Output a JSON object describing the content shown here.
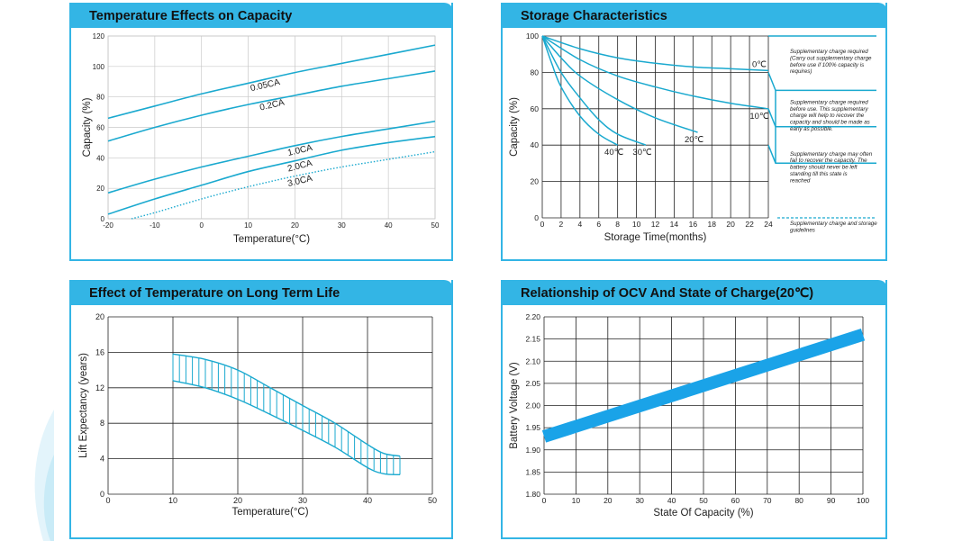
{
  "colors": {
    "accent": "#33b5e5",
    "curve": "#1aa9cf",
    "grid": "#222222"
  },
  "chart_data": [
    {
      "id": "capacity",
      "type": "line",
      "title": "Temperature Effects on Capacity",
      "xlabel": "Temperature(°C)",
      "ylabel": "Capacity (%)",
      "xlim": [
        -20,
        50
      ],
      "ylim": [
        0,
        120
      ],
      "xticks": [
        -20,
        -10,
        0,
        10,
        20,
        30,
        40,
        50
      ],
      "yticks": [
        0,
        20,
        40,
        60,
        80,
        100,
        120
      ],
      "series": [
        {
          "name": "0.05CA",
          "x": [
            -20,
            -10,
            0,
            10,
            20,
            30,
            40,
            50
          ],
          "y": [
            66,
            74,
            82,
            89,
            96,
            102,
            108,
            114
          ]
        },
        {
          "name": "0.2CA",
          "x": [
            -20,
            -10,
            0,
            10,
            20,
            30,
            40,
            50
          ],
          "y": [
            51,
            60,
            68,
            75,
            81,
            87,
            92,
            97
          ]
        },
        {
          "name": "1.0CA",
          "x": [
            -20,
            -10,
            0,
            10,
            20,
            30,
            40,
            50
          ],
          "y": [
            17,
            26,
            34,
            41,
            48,
            54,
            59,
            64
          ]
        },
        {
          "name": "2.0CA",
          "x": [
            -20,
            -10,
            0,
            10,
            20,
            30,
            40,
            50
          ],
          "y": [
            3,
            13,
            22,
            31,
            38,
            45,
            50,
            54
          ]
        },
        {
          "name": "3.0CA",
          "x": [
            -15,
            -10,
            0,
            10,
            20,
            30,
            40,
            50
          ],
          "y": [
            0,
            4,
            13,
            21,
            28,
            34,
            39,
            44
          ],
          "dotted": true
        }
      ]
    },
    {
      "id": "storage",
      "type": "line",
      "title": "Storage Characteristics",
      "xlabel": "Storage Time(months)",
      "ylabel": "Capacity (%)",
      "xlim": [
        0,
        24
      ],
      "ylim": [
        0,
        100
      ],
      "xticks": [
        0,
        2,
        4,
        6,
        8,
        10,
        12,
        14,
        16,
        18,
        20,
        22,
        24
      ],
      "yticks": [
        0,
        20,
        40,
        60,
        80,
        100
      ],
      "series": [
        {
          "name": "0℃",
          "x": [
            0,
            4,
            8,
            12,
            16,
            20,
            24
          ],
          "y": [
            100,
            93,
            88,
            85,
            83,
            82,
            81
          ]
        },
        {
          "name": "10℃",
          "x": [
            0,
            4,
            8,
            12,
            16,
            20,
            24
          ],
          "y": [
            100,
            87,
            78,
            72,
            67,
            63,
            60
          ]
        },
        {
          "name": "20℃",
          "x": [
            0,
            2,
            4,
            8,
            12,
            16.5
          ],
          "y": [
            100,
            88,
            78,
            65,
            55,
            47
          ]
        },
        {
          "name": "30℃",
          "x": [
            0,
            2,
            4,
            6,
            8,
            11
          ],
          "y": [
            100,
            80,
            66,
            54,
            46,
            40
          ]
        },
        {
          "name": "40℃",
          "x": [
            0,
            1,
            2,
            4,
            6,
            8
          ],
          "y": [
            100,
            85,
            72,
            56,
            46,
            40
          ]
        }
      ],
      "bands": [
        {
          "y": 80,
          "note": "Supplementary charge required (Carry out supplementary charge before use if 100% capacity is requires)"
        },
        {
          "y": 60,
          "note": "Supplementary charge required before use. This supplementary charge will help to recover the capacity and should be made as early as possible."
        },
        {
          "y": 40,
          "note": "Supplementary charge may often fail to recover the capacity. The battery should never be left standing till this state is reached"
        },
        {
          "y": 0,
          "note": "Supplementary charge and storage guidelines"
        }
      ]
    },
    {
      "id": "life",
      "type": "area",
      "title": "Effect of Temperature on Long Term Life",
      "xlabel": "Temperature(°C)",
      "ylabel": "Lift Expectancy (years)",
      "xlim": [
        0,
        50
      ],
      "ylim": [
        0,
        20
      ],
      "xticks": [
        0,
        10,
        20,
        30,
        40,
        50
      ],
      "yticks": [
        0,
        4,
        8,
        12,
        16,
        20
      ],
      "series": [
        {
          "name": "upper",
          "x": [
            10,
            15,
            20,
            25,
            30,
            35,
            40,
            42.5,
            45
          ],
          "y": [
            15.8,
            15.2,
            14,
            12,
            10,
            8,
            5.6,
            4.6,
            4.3
          ]
        },
        {
          "name": "lower",
          "x": [
            10,
            15,
            20,
            25,
            30,
            35,
            40,
            42.5,
            45
          ],
          "y": [
            12.8,
            12,
            10.7,
            9,
            7.2,
            5.3,
            3,
            2.3,
            2.2
          ]
        }
      ]
    },
    {
      "id": "ocv",
      "type": "line",
      "title": "Relationship of OCV And State of Charge(20℃)",
      "xlabel": "State Of Capacity (%)",
      "ylabel": "Battery Voltage (V)",
      "xlim": [
        0,
        100
      ],
      "ylim": [
        1.8,
        2.2
      ],
      "xticks": [
        0,
        10,
        20,
        30,
        40,
        50,
        60,
        70,
        80,
        90,
        100
      ],
      "yticks": [
        "1.80",
        "1.85",
        "1.90",
        "1.95",
        "2.00",
        "2.05",
        "2.10",
        "2.15",
        "2.20"
      ],
      "series": [
        {
          "name": "OCV",
          "x": [
            0,
            100
          ],
          "y": [
            1.93,
            2.16
          ]
        }
      ]
    }
  ]
}
